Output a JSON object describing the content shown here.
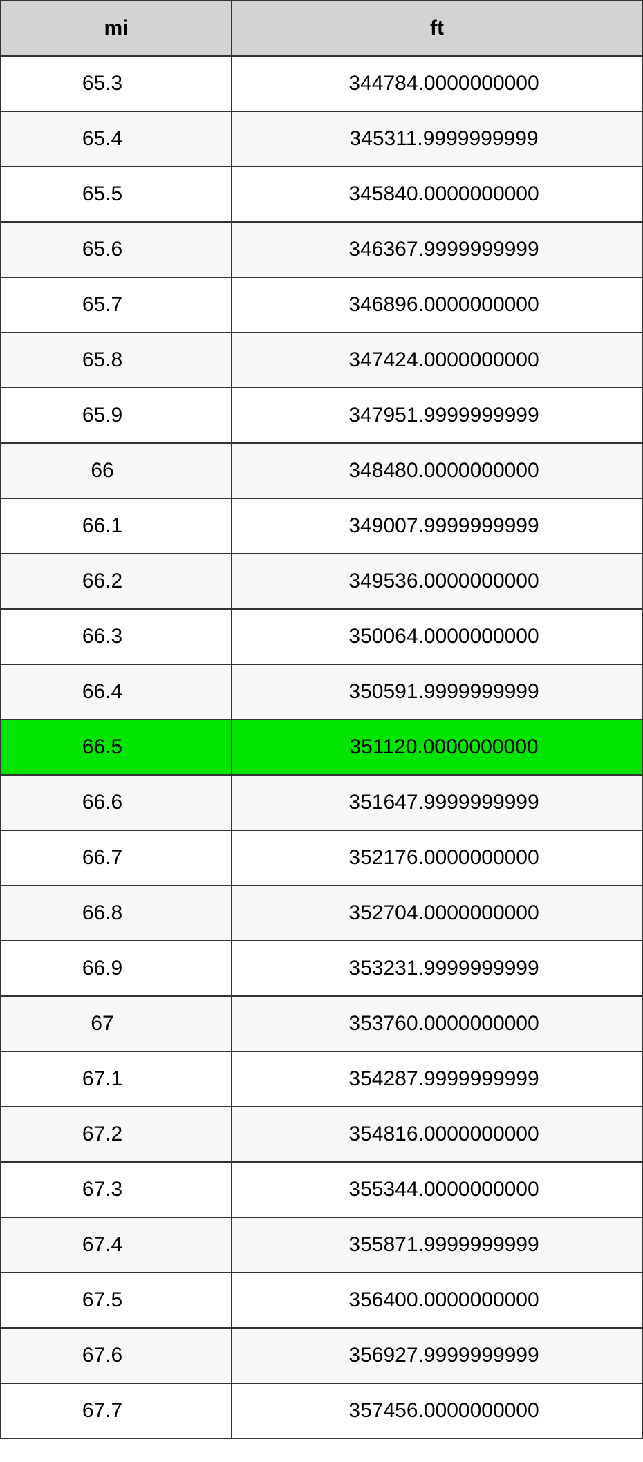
{
  "table": {
    "type": "table",
    "columns": [
      {
        "key": "mi",
        "label": "mi",
        "width": "36%",
        "align": "center"
      },
      {
        "key": "ft",
        "label": "ft",
        "width": "64%",
        "align": "center"
      }
    ],
    "header_background": "#d3d3d3",
    "border_color": "#333333",
    "row_colors": {
      "odd": "#ffffff",
      "even": "#f7f7f7",
      "highlight": "#00e500"
    },
    "font_size": 30,
    "highlighted_row_index": 12,
    "rows": [
      {
        "mi": "65.3",
        "ft": "344784.0000000000"
      },
      {
        "mi": "65.4",
        "ft": "345311.9999999999"
      },
      {
        "mi": "65.5",
        "ft": "345840.0000000000"
      },
      {
        "mi": "65.6",
        "ft": "346367.9999999999"
      },
      {
        "mi": "65.7",
        "ft": "346896.0000000000"
      },
      {
        "mi": "65.8",
        "ft": "347424.0000000000"
      },
      {
        "mi": "65.9",
        "ft": "347951.9999999999"
      },
      {
        "mi": "66",
        "ft": "348480.0000000000"
      },
      {
        "mi": "66.1",
        "ft": "349007.9999999999"
      },
      {
        "mi": "66.2",
        "ft": "349536.0000000000"
      },
      {
        "mi": "66.3",
        "ft": "350064.0000000000"
      },
      {
        "mi": "66.4",
        "ft": "350591.9999999999"
      },
      {
        "mi": "66.5",
        "ft": "351120.0000000000"
      },
      {
        "mi": "66.6",
        "ft": "351647.9999999999"
      },
      {
        "mi": "66.7",
        "ft": "352176.0000000000"
      },
      {
        "mi": "66.8",
        "ft": "352704.0000000000"
      },
      {
        "mi": "66.9",
        "ft": "353231.9999999999"
      },
      {
        "mi": "67",
        "ft": "353760.0000000000"
      },
      {
        "mi": "67.1",
        "ft": "354287.9999999999"
      },
      {
        "mi": "67.2",
        "ft": "354816.0000000000"
      },
      {
        "mi": "67.3",
        "ft": "355344.0000000000"
      },
      {
        "mi": "67.4",
        "ft": "355871.9999999999"
      },
      {
        "mi": "67.5",
        "ft": "356400.0000000000"
      },
      {
        "mi": "67.6",
        "ft": "356927.9999999999"
      },
      {
        "mi": "67.7",
        "ft": "357456.0000000000"
      }
    ]
  }
}
